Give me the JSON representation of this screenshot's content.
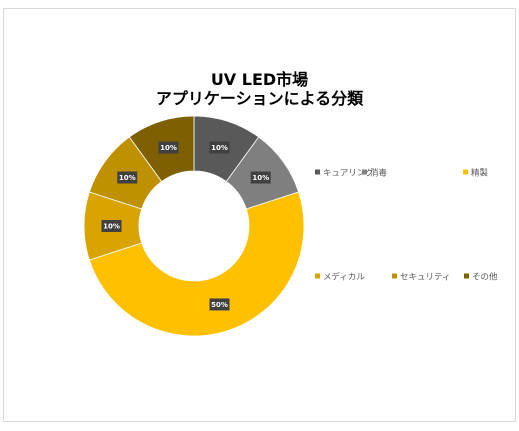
{
  "chart_data": {
    "type": "pie",
    "subtype": "doughnut",
    "title_lines": [
      "UV LED市場",
      "アプリケーションによる分類"
    ],
    "categories": [
      "キュアリング",
      "消毒",
      "精製",
      "メディカル",
      "セキュリティ",
      "その他"
    ],
    "values": [
      10,
      10,
      50,
      10,
      10,
      10
    ],
    "data_labels": [
      "10%",
      "10%",
      "50%",
      "10%",
      "10%",
      "10%"
    ],
    "colors": [
      "#595959",
      "#7f7f7f",
      "#ffc000",
      "#d9a300",
      "#bf9000",
      "#7f6000"
    ],
    "legend_position": "right"
  }
}
